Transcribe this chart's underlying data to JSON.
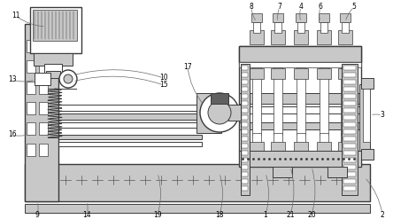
{
  "bg_color": "#ffffff",
  "lc": "#6a6a6a",
  "dc": "#3a3a3a",
  "lgray": "#c8c8c8",
  "mgray": "#999999",
  "dgray": "#606060",
  "figsize": [
    4.44,
    2.47
  ],
  "dpi": 100
}
